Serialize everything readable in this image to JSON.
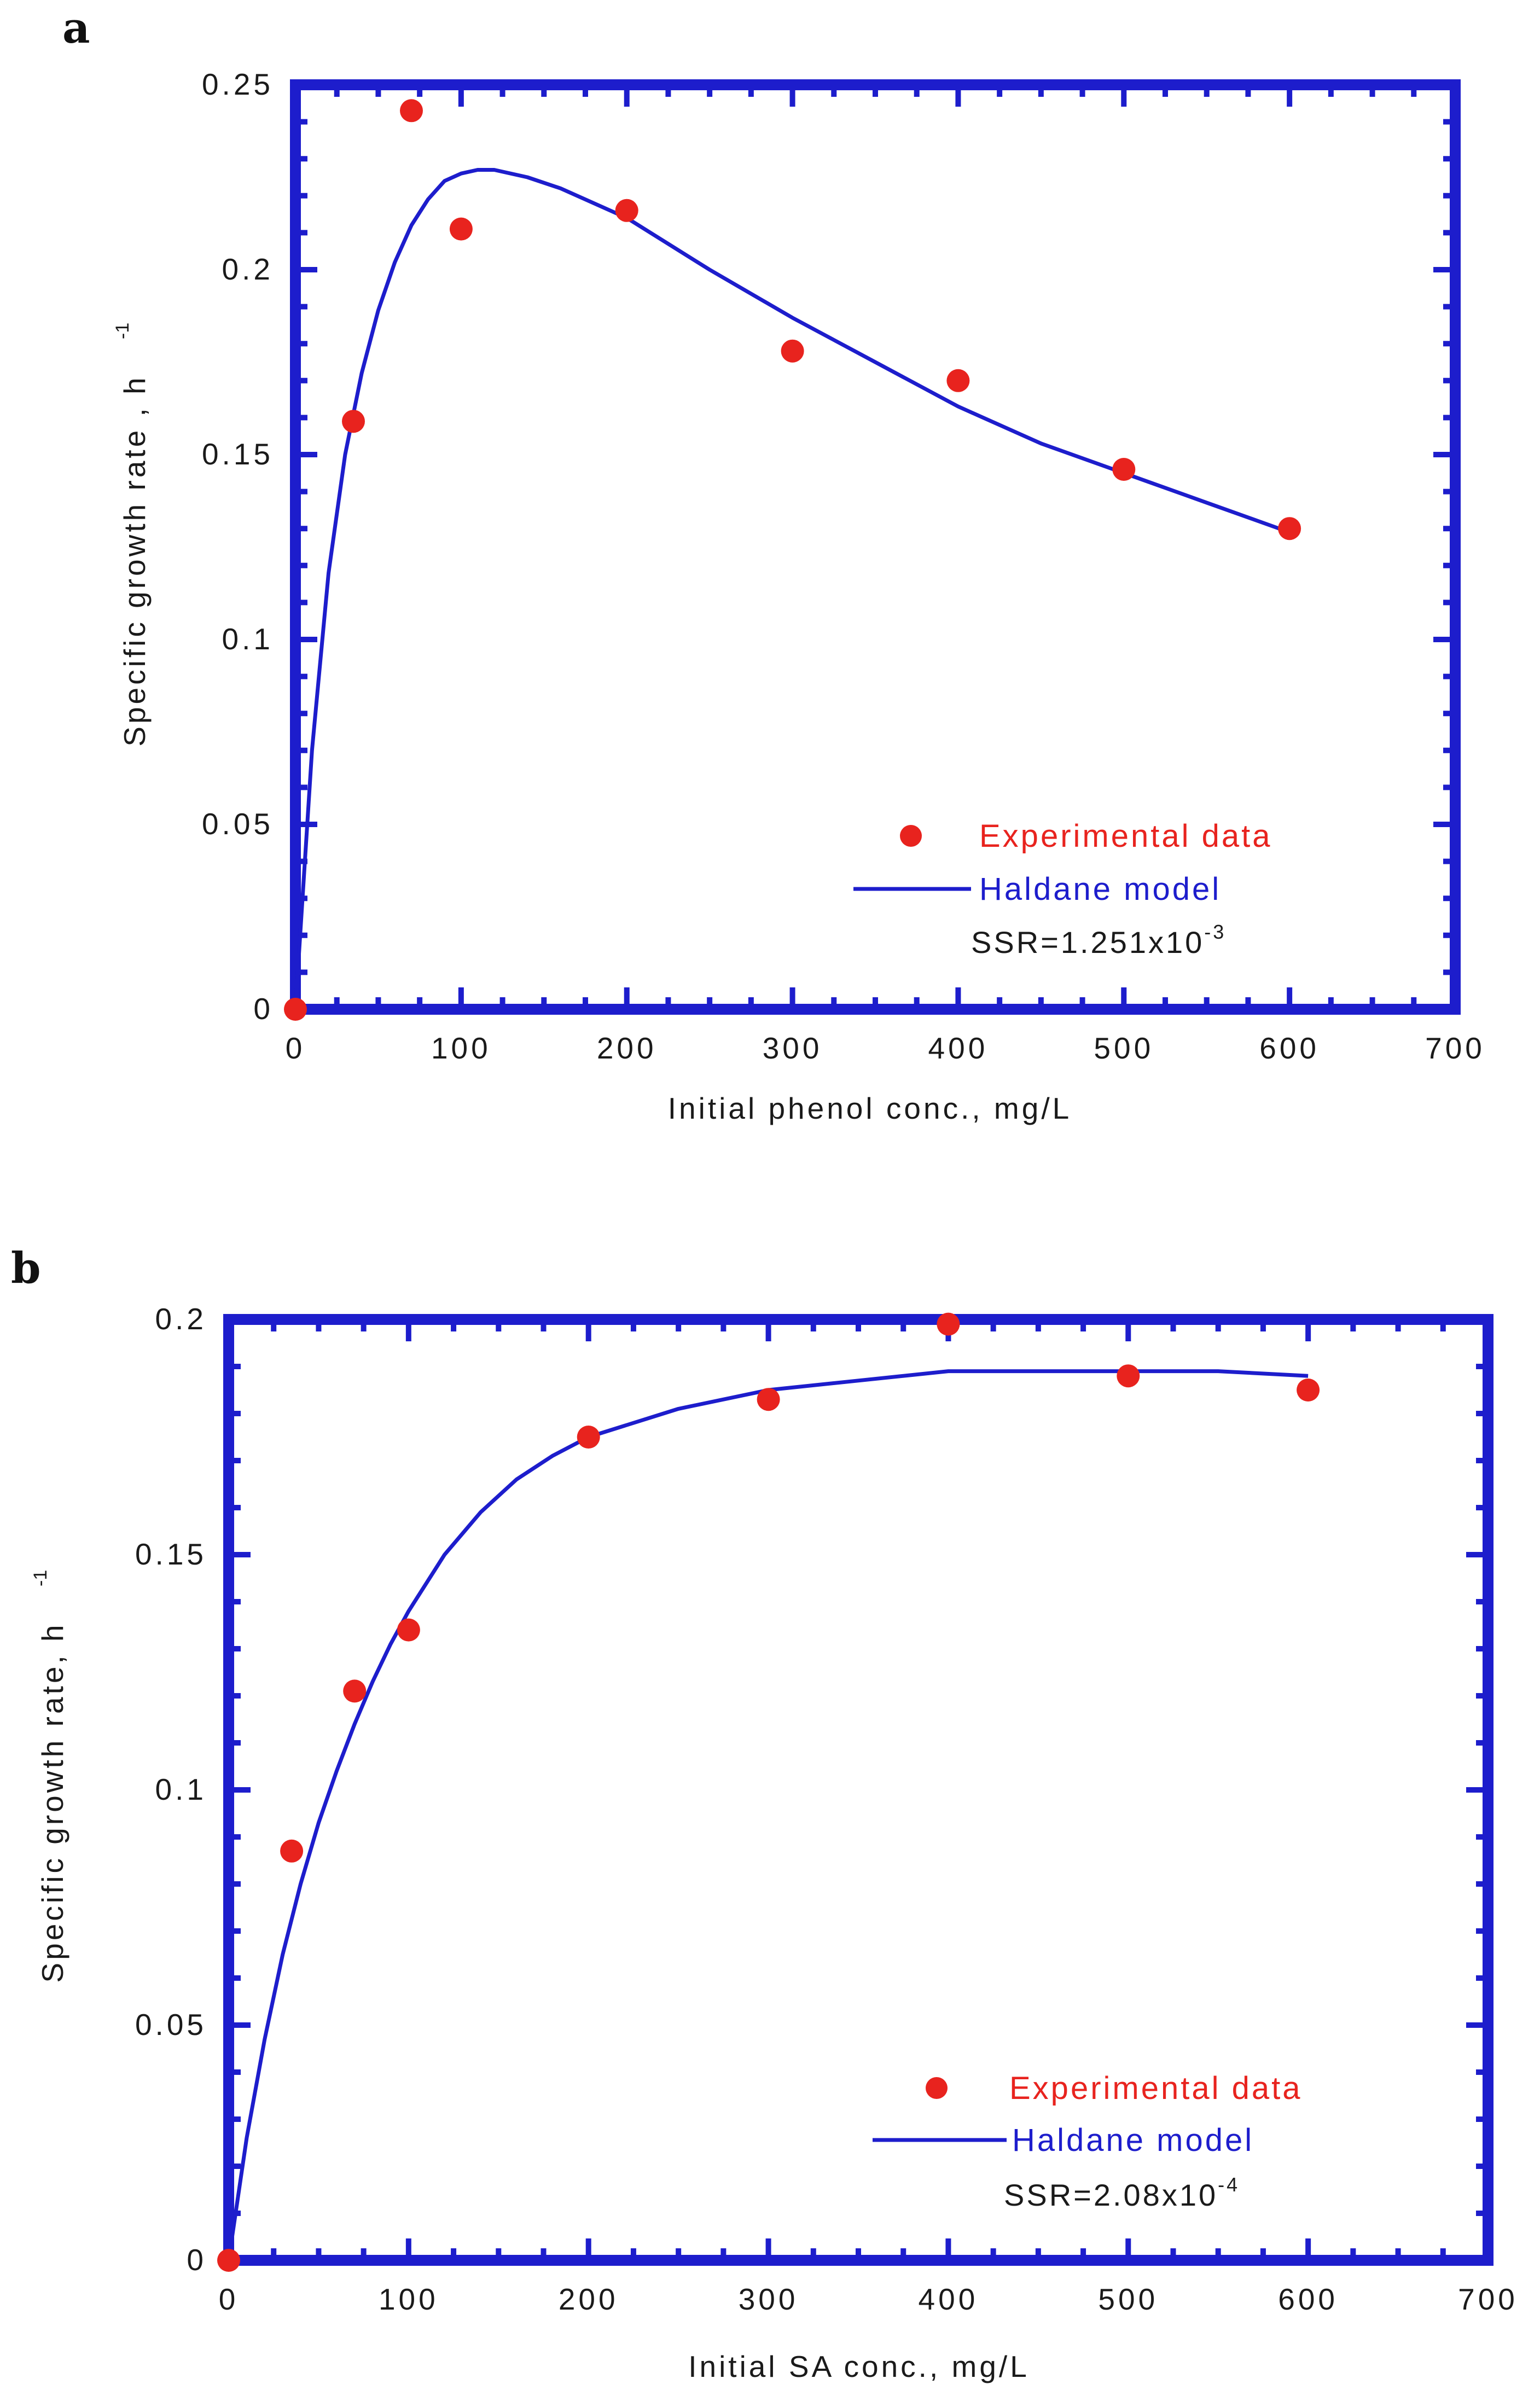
{
  "chart_data": [
    {
      "type": "scatter",
      "panel_label": "a",
      "xlabel": "Initial phenol conc., mg/L",
      "ylabel": "Specific growth rate , h",
      "ylabel_sup": "-1",
      "xlim": [
        0,
        700
      ],
      "ylim": [
        0,
        0.25
      ],
      "x_ticks": [
        0,
        100,
        200,
        300,
        400,
        500,
        600,
        700
      ],
      "y_ticks": [
        0,
        0.05,
        0.1,
        0.15,
        0.2,
        0.25
      ],
      "x_tick_labels": [
        "0",
        "100",
        "200",
        "300",
        "400",
        "500",
        "600",
        "700"
      ],
      "y_tick_labels": [
        "0",
        "0.05",
        "0.1",
        "0.15",
        "0.2",
        "0.25"
      ],
      "series": [
        {
          "name": "Experimental data",
          "kind": "scatter",
          "color": "#e8231e",
          "x": [
            0,
            35,
            70,
            100,
            200,
            300,
            400,
            500,
            600
          ],
          "y": [
            0.0,
            0.159,
            0.243,
            0.211,
            0.216,
            0.178,
            0.17,
            0.146,
            0.13
          ]
        },
        {
          "name": "Haldane model",
          "kind": "line",
          "color": "#1d1dcc",
          "x": [
            0,
            10,
            20,
            30,
            40,
            50,
            60,
            70,
            80,
            90,
            100,
            110,
            120,
            140,
            160,
            200,
            250,
            300,
            350,
            400,
            450,
            500,
            550,
            600
          ],
          "y": [
            0.0,
            0.07,
            0.118,
            0.15,
            0.172,
            0.189,
            0.202,
            0.212,
            0.219,
            0.224,
            0.226,
            0.227,
            0.227,
            0.225,
            0.222,
            0.214,
            0.2,
            0.187,
            0.175,
            0.163,
            0.153,
            0.145,
            0.137,
            0.129
          ]
        }
      ],
      "annotation": {
        "text": "SSR=1.251x10",
        "exponent": "-3"
      }
    },
    {
      "type": "scatter",
      "panel_label": "b",
      "xlabel": "Initial SA conc., mg/L",
      "ylabel": "Specific growth rate, h",
      "ylabel_sup": "-1",
      "xlim": [
        0,
        700
      ],
      "ylim": [
        0,
        0.2
      ],
      "x_ticks": [
        0,
        100,
        200,
        300,
        400,
        500,
        600,
        700
      ],
      "y_ticks": [
        0,
        0.05,
        0.1,
        0.15,
        0.2
      ],
      "x_tick_labels": [
        "0",
        "100",
        "200",
        "300",
        "400",
        "500",
        "600",
        "700"
      ],
      "y_tick_labels": [
        "0",
        "0.05",
        "0.1",
        "0.15",
        "0.2"
      ],
      "series": [
        {
          "name": "Experimental data",
          "kind": "scatter",
          "color": "#e8231e",
          "x": [
            0,
            35,
            70,
            100,
            200,
            300,
            400,
            500,
            600
          ],
          "y": [
            0.0,
            0.087,
            0.121,
            0.134,
            0.175,
            0.183,
            0.199,
            0.188,
            0.185
          ]
        },
        {
          "name": "Haldane model",
          "kind": "line",
          "color": "#1d1dcc",
          "x": [
            0,
            10,
            20,
            30,
            40,
            50,
            60,
            70,
            80,
            90,
            100,
            120,
            140,
            160,
            180,
            200,
            250,
            300,
            350,
            400,
            450,
            500,
            550,
            600
          ],
          "y": [
            0.0,
            0.026,
            0.047,
            0.065,
            0.08,
            0.093,
            0.104,
            0.114,
            0.123,
            0.131,
            0.138,
            0.15,
            0.159,
            0.166,
            0.171,
            0.175,
            0.181,
            0.185,
            0.187,
            0.189,
            0.189,
            0.189,
            0.189,
            0.188
          ]
        }
      ],
      "annotation": {
        "text": "SSR=2.08x10",
        "exponent": "-4"
      }
    }
  ]
}
